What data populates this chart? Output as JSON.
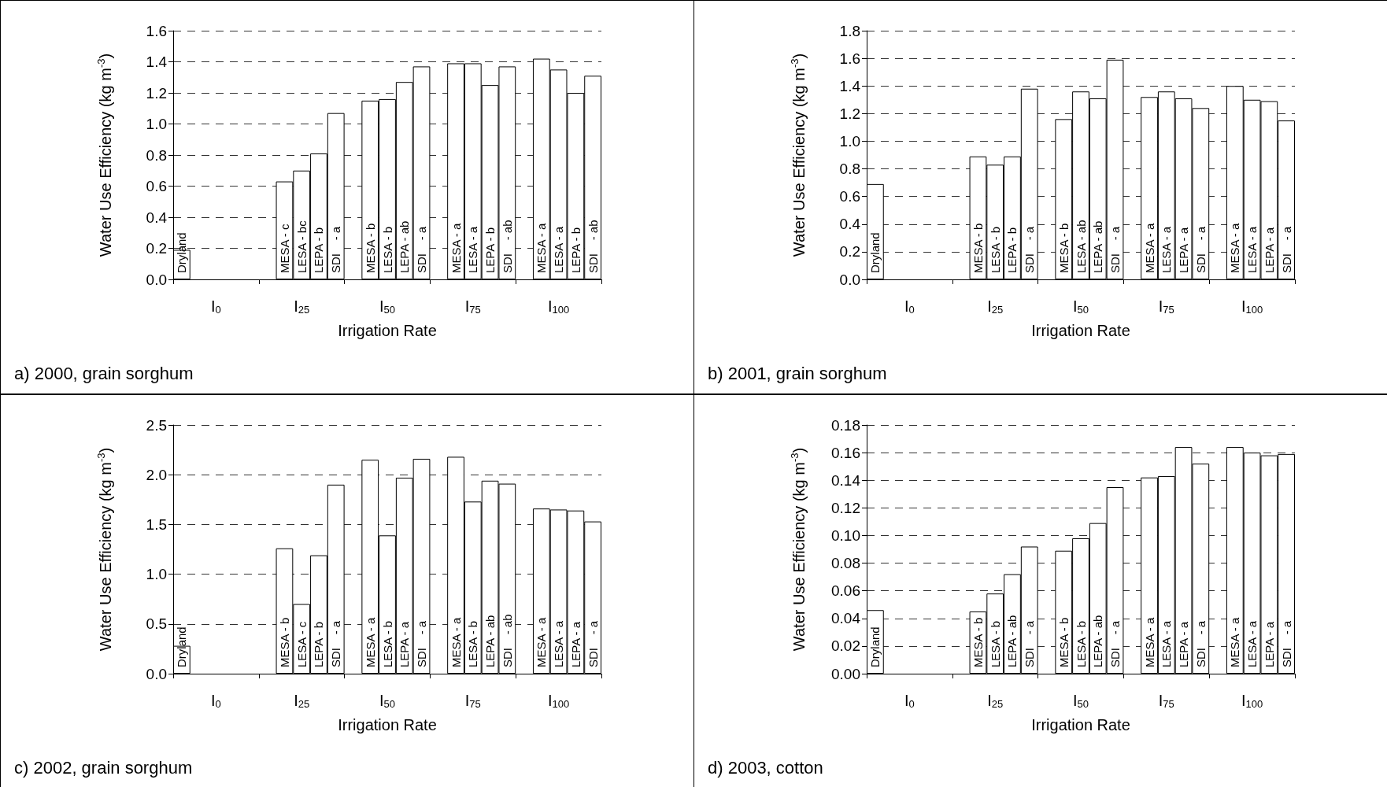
{
  "chart_data": [
    {
      "type": "bar",
      "title": "a) 2000, grain sorghum",
      "xlabel": "Irrigation Rate",
      "ylabel": "Water Use Efficiency (kg m$^{-3}$)",
      "categories": [
        "I$_{0}$",
        "I$_{25}$",
        "I$_{50}$",
        "I$_{75}$",
        "I$_{100}$"
      ],
      "ylim": [
        0,
        1.6
      ],
      "yticks": [
        {
          "value": 0,
          "label": "0.0"
        },
        0.2,
        0.4,
        0.6,
        0.8,
        {
          "value": 1,
          "label": "1.0"
        },
        1.2,
        1.4,
        1.6
      ],
      "grid": "y",
      "series": [
        {
          "color": "#ffffff",
          "values": [
            0.19,
            null,
            null,
            null,
            null
          ],
          "value_labels": [
            "Dryland",
            null,
            null,
            null,
            null
          ]
        },
        {
          "color": "#ffffff",
          "values": [
            null,
            0.63,
            1.15,
            1.39,
            1.42
          ],
          "value_labels": [
            null,
            "MESA - c",
            "MESA - b",
            "MESA - a",
            "MESA - a"
          ]
        },
        {
          "color": "#ffffff",
          "values": [
            null,
            0.7,
            1.16,
            1.39,
            1.35
          ],
          "value_labels": [
            null,
            "LESA - bc",
            "LESA - b",
            "LESA - a",
            "LESA - a"
          ]
        },
        {
          "color": "#ffffff",
          "values": [
            null,
            0.81,
            1.27,
            1.25,
            1.2
          ],
          "value_labels": [
            null,
            "LEPA - b",
            "LEPA - ab",
            "LEPA - b",
            "LEPA - b"
          ]
        },
        {
          "color": "#ffffff",
          "values": [
            null,
            1.07,
            1.37,
            1.37,
            1.31
          ],
          "value_labels": [
            null,
            "SDI    - a",
            "SDI    - a",
            "SDI    - ab",
            "SDI    - ab"
          ]
        }
      ]
    },
    {
      "type": "bar",
      "title": "b) 2001, grain sorghum",
      "xlabel": "Irrigation Rate",
      "ylabel": "Water Use Efficiency (kg m$^{-3}$)",
      "categories": [
        "I$_{0}$",
        "I$_{25}$",
        "I$_{50}$",
        "I$_{75}$",
        "I$_{100}$"
      ],
      "ylim": [
        0,
        1.8
      ],
      "yticks": [
        {
          "value": 0,
          "label": "0.0"
        },
        0.2,
        0.4,
        0.6,
        0.8,
        {
          "value": 1,
          "label": "1.0"
        },
        1.2,
        1.4,
        1.6,
        1.8
      ],
      "grid": "y",
      "series": [
        {
          "color": "#ffffff",
          "values": [
            0.69,
            null,
            null,
            null,
            null
          ],
          "value_labels": [
            "Dryland",
            null,
            null,
            null,
            null
          ]
        },
        {
          "color": "#ffffff",
          "values": [
            null,
            0.89,
            1.16,
            1.32,
            1.4
          ],
          "value_labels": [
            null,
            "MESA - b",
            "MESA - b",
            "MESA - a",
            "MESA - a"
          ]
        },
        {
          "color": "#ffffff",
          "values": [
            null,
            0.83,
            1.36,
            1.36,
            1.3
          ],
          "value_labels": [
            null,
            "LESA - b",
            "LESA - ab",
            "LESA - a",
            "LESA - a"
          ]
        },
        {
          "color": "#ffffff",
          "values": [
            null,
            0.89,
            1.31,
            1.31,
            1.29
          ],
          "value_labels": [
            null,
            "LEPA - b",
            "LEPA - ab",
            "LEPA - a",
            "LEPA - a"
          ]
        },
        {
          "color": "#ffffff",
          "values": [
            null,
            1.38,
            1.59,
            1.24,
            1.15
          ],
          "value_labels": [
            null,
            "SDI    - a",
            "SDI    - a",
            "SDI    - a",
            "SDI    - a"
          ]
        }
      ]
    },
    {
      "type": "bar",
      "title": "c) 2002, grain sorghum",
      "xlabel": "Irrigation Rate",
      "ylabel": "Water Use Efficiency (kg m$^{-3}$)",
      "categories": [
        "I$_{0}$",
        "I$_{25}$",
        "I$_{50}$",
        "I$_{75}$",
        "I$_{100}$"
      ],
      "ylim": [
        0,
        2.5
      ],
      "yticks": [
        {
          "value": 0,
          "label": "0.0"
        },
        0.5,
        {
          "value": 1,
          "label": "1.0"
        },
        1.5,
        {
          "value": 2,
          "label": "2.0"
        },
        2.5
      ],
      "grid": "y",
      "series": [
        {
          "color": "#ffffff",
          "values": [
            0.28,
            null,
            null,
            null,
            null
          ],
          "value_labels": [
            "Dryland",
            null,
            null,
            null,
            null
          ]
        },
        {
          "color": "#ffffff",
          "values": [
            null,
            1.26,
            2.15,
            2.18,
            1.66
          ],
          "value_labels": [
            null,
            "MESA - b",
            "MESA - a",
            "MESA - a",
            "MESA - a"
          ]
        },
        {
          "color": "#ffffff",
          "values": [
            null,
            0.7,
            1.39,
            1.73,
            1.65
          ],
          "value_labels": [
            null,
            "LESA - c",
            "LESA - b",
            "LESA - b",
            "LESA - a"
          ]
        },
        {
          "color": "#ffffff",
          "values": [
            null,
            1.19,
            1.97,
            1.94,
            1.64
          ],
          "value_labels": [
            null,
            "LEPA - b",
            "LEPA - a",
            "LEPA - ab",
            "LEPA - a"
          ]
        },
        {
          "color": "#ffffff",
          "values": [
            null,
            1.9,
            2.16,
            1.91,
            1.53
          ],
          "value_labels": [
            null,
            "SDI    - a",
            "SDI    - a",
            "SDI    - ab",
            "SDI    - a"
          ]
        }
      ]
    },
    {
      "type": "bar",
      "title": "d) 2003, cotton",
      "xlabel": "Irrigation Rate",
      "ylabel": "Water Use Efficiency (kg m$^{-3}$)",
      "categories": [
        "I$_{0}$",
        "I$_{25}$",
        "I$_{50}$",
        "I$_{75}$",
        "I$_{100}$"
      ],
      "ylim": [
        0,
        0.18
      ],
      "yticks": [
        {
          "value": 0,
          "label": "0.00"
        },
        0.02,
        0.04,
        0.06,
        0.08,
        {
          "value": 0.1,
          "label": "0.10"
        },
        0.12,
        0.14,
        0.16,
        0.18
      ],
      "grid": "y",
      "series": [
        {
          "color": "#ffffff",
          "values": [
            0.046,
            null,
            null,
            null,
            null
          ],
          "value_labels": [
            "Dryland",
            null,
            null,
            null,
            null
          ]
        },
        {
          "color": "#ffffff",
          "values": [
            null,
            0.045,
            0.089,
            0.142,
            0.164
          ],
          "value_labels": [
            null,
            "MESA - b",
            "MESA - b",
            "MESA - a",
            "MESA - a"
          ]
        },
        {
          "color": "#ffffff",
          "values": [
            null,
            0.058,
            0.098,
            0.143,
            0.16
          ],
          "value_labels": [
            null,
            "LESA - b",
            "LESA - b",
            "LESA - a",
            "LESA - a"
          ]
        },
        {
          "color": "#ffffff",
          "values": [
            null,
            0.072,
            0.109,
            0.164,
            0.158
          ],
          "value_labels": [
            null,
            "LEPA - ab",
            "LEPA - ab",
            "LEPA - a",
            "LEPA - a"
          ]
        },
        {
          "color": "#ffffff",
          "values": [
            null,
            0.092,
            0.135,
            0.152,
            0.159
          ],
          "value_labels": [
            null,
            "SDI    - a",
            "SDI    - a",
            "SDI    - a",
            "SDI    - a"
          ]
        }
      ]
    }
  ]
}
